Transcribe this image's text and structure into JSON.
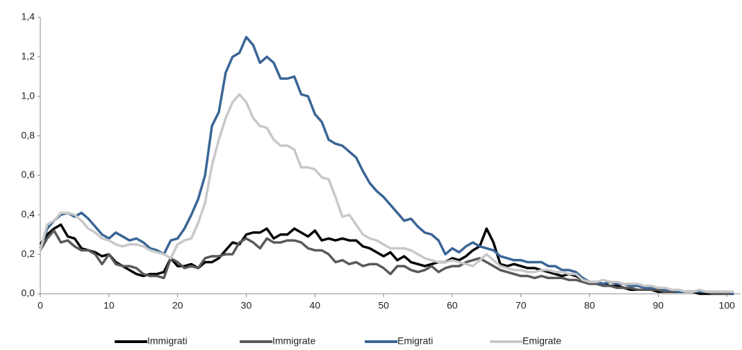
{
  "chart_data": {
    "type": "line",
    "x": [
      0,
      1,
      2,
      3,
      4,
      5,
      6,
      7,
      8,
      9,
      10,
      11,
      12,
      13,
      14,
      15,
      16,
      17,
      18,
      19,
      20,
      21,
      22,
      23,
      24,
      25,
      26,
      27,
      28,
      29,
      30,
      31,
      32,
      33,
      34,
      35,
      36,
      37,
      38,
      39,
      40,
      41,
      42,
      43,
      44,
      45,
      46,
      47,
      48,
      49,
      50,
      51,
      52,
      53,
      54,
      55,
      56,
      57,
      58,
      59,
      60,
      61,
      62,
      63,
      64,
      65,
      66,
      67,
      68,
      69,
      70,
      71,
      72,
      73,
      74,
      75,
      76,
      77,
      78,
      79,
      80,
      81,
      82,
      83,
      84,
      85,
      86,
      87,
      88,
      89,
      90,
      91,
      92,
      93,
      94,
      95,
      96,
      97,
      98,
      99,
      100,
      101
    ],
    "series": [
      {
        "name": "Immigrati",
        "color": "#000000",
        "values": [
          0.25,
          0.3,
          0.33,
          0.35,
          0.29,
          0.28,
          0.23,
          0.22,
          0.21,
          0.19,
          0.2,
          0.16,
          0.14,
          0.12,
          0.1,
          0.09,
          0.1,
          0.1,
          0.11,
          0.18,
          0.14,
          0.14,
          0.15,
          0.13,
          0.16,
          0.16,
          0.18,
          0.22,
          0.26,
          0.25,
          0.3,
          0.31,
          0.31,
          0.33,
          0.28,
          0.3,
          0.3,
          0.33,
          0.31,
          0.29,
          0.32,
          0.27,
          0.28,
          0.27,
          0.28,
          0.27,
          0.27,
          0.24,
          0.23,
          0.21,
          0.19,
          0.21,
          0.17,
          0.19,
          0.16,
          0.15,
          0.14,
          0.15,
          0.16,
          0.16,
          0.18,
          0.17,
          0.19,
          0.22,
          0.24,
          0.33,
          0.26,
          0.15,
          0.14,
          0.15,
          0.14,
          0.13,
          0.13,
          0.12,
          0.11,
          0.1,
          0.09,
          0.1,
          0.09,
          0.07,
          0.06,
          0.05,
          0.05,
          0.04,
          0.04,
          0.03,
          0.02,
          0.02,
          0.02,
          0.02,
          0.01,
          0.01,
          0.01,
          0.01,
          0.01,
          0.01,
          0.0,
          0.0,
          0.0,
          0.0,
          0.0,
          0.0
        ]
      },
      {
        "name": "Immigrate",
        "color": "#595959",
        "values": [
          0.22,
          0.28,
          0.32,
          0.26,
          0.27,
          0.24,
          0.22,
          0.22,
          0.2,
          0.15,
          0.2,
          0.15,
          0.14,
          0.14,
          0.13,
          0.1,
          0.09,
          0.09,
          0.08,
          0.18,
          0.16,
          0.13,
          0.14,
          0.13,
          0.18,
          0.19,
          0.19,
          0.2,
          0.2,
          0.26,
          0.28,
          0.26,
          0.23,
          0.28,
          0.26,
          0.26,
          0.27,
          0.27,
          0.26,
          0.23,
          0.22,
          0.22,
          0.2,
          0.16,
          0.17,
          0.15,
          0.16,
          0.14,
          0.15,
          0.15,
          0.13,
          0.1,
          0.14,
          0.14,
          0.12,
          0.11,
          0.12,
          0.14,
          0.11,
          0.13,
          0.14,
          0.14,
          0.16,
          0.17,
          0.18,
          0.16,
          0.14,
          0.12,
          0.11,
          0.1,
          0.09,
          0.09,
          0.08,
          0.09,
          0.08,
          0.08,
          0.08,
          0.07,
          0.07,
          0.06,
          0.05,
          0.05,
          0.04,
          0.04,
          0.03,
          0.03,
          0.03,
          0.02,
          0.02,
          0.02,
          0.02,
          0.01,
          0.01,
          0.01,
          0.01,
          0.01,
          0.01,
          0.01,
          0.0,
          0.0,
          0.0,
          0.0
        ]
      },
      {
        "name": "Emigrati",
        "color": "#3a6596",
        "values": [
          0.23,
          0.33,
          0.37,
          0.4,
          0.41,
          0.39,
          0.41,
          0.38,
          0.34,
          0.3,
          0.28,
          0.31,
          0.29,
          0.27,
          0.28,
          0.26,
          0.23,
          0.22,
          0.2,
          0.27,
          0.28,
          0.33,
          0.4,
          0.48,
          0.6,
          0.85,
          0.92,
          1.12,
          1.2,
          1.22,
          1.3,
          1.26,
          1.17,
          1.2,
          1.17,
          1.09,
          1.09,
          1.1,
          1.01,
          1.0,
          0.91,
          0.87,
          0.78,
          0.76,
          0.75,
          0.72,
          0.69,
          0.62,
          0.56,
          0.52,
          0.49,
          0.45,
          0.41,
          0.37,
          0.38,
          0.34,
          0.31,
          0.3,
          0.27,
          0.2,
          0.23,
          0.21,
          0.24,
          0.26,
          0.24,
          0.23,
          0.22,
          0.19,
          0.18,
          0.17,
          0.17,
          0.16,
          0.16,
          0.16,
          0.14,
          0.14,
          0.12,
          0.12,
          0.11,
          0.08,
          0.06,
          0.06,
          0.05,
          0.06,
          0.05,
          0.05,
          0.04,
          0.04,
          0.03,
          0.03,
          0.03,
          0.02,
          0.02,
          0.01,
          0.01,
          0.01,
          0.01,
          0.01,
          0.01,
          0.01,
          0.01,
          0.0
        ]
      },
      {
        "name": "Emigrate",
        "color": "#c8c8c8",
        "values": [
          0.22,
          0.35,
          0.37,
          0.41,
          0.41,
          0.4,
          0.37,
          0.33,
          0.31,
          0.28,
          0.27,
          0.25,
          0.24,
          0.25,
          0.25,
          0.24,
          0.22,
          0.21,
          0.2,
          0.18,
          0.25,
          0.27,
          0.28,
          0.36,
          0.46,
          0.65,
          0.78,
          0.89,
          0.97,
          1.01,
          0.97,
          0.89,
          0.85,
          0.84,
          0.78,
          0.75,
          0.75,
          0.73,
          0.64,
          0.64,
          0.63,
          0.59,
          0.58,
          0.49,
          0.39,
          0.4,
          0.35,
          0.3,
          0.28,
          0.27,
          0.25,
          0.23,
          0.23,
          0.23,
          0.22,
          0.2,
          0.18,
          0.17,
          0.16,
          0.16,
          0.17,
          0.16,
          0.15,
          0.14,
          0.17,
          0.2,
          0.17,
          0.14,
          0.13,
          0.12,
          0.12,
          0.11,
          0.11,
          0.12,
          0.12,
          0.11,
          0.11,
          0.1,
          0.1,
          0.07,
          0.06,
          0.06,
          0.07,
          0.06,
          0.06,
          0.05,
          0.05,
          0.05,
          0.04,
          0.04,
          0.03,
          0.03,
          0.02,
          0.02,
          0.01,
          0.01,
          0.02,
          0.01,
          0.01,
          0.01,
          0.01,
          0.01
        ]
      }
    ],
    "xlim": [
      0,
      102
    ],
    "xticks": [
      0,
      10,
      20,
      30,
      40,
      50,
      60,
      70,
      80,
      90,
      100
    ],
    "ylim": [
      0,
      1.4
    ],
    "yticks": [
      {
        "value": 0,
        "label": "0,0"
      },
      {
        "value": 0.2,
        "label": "0,2"
      },
      {
        "value": 0.4,
        "label": "0,4"
      },
      {
        "value": 0.6,
        "label": "0,6"
      },
      {
        "value": 0.8,
        "label": "0,8"
      },
      {
        "value": 1.0,
        "label": "1,0"
      },
      {
        "value": 1.2,
        "label": "1,2"
      },
      {
        "value": 1.4,
        "label": "1,4"
      }
    ],
    "grid": false,
    "legend": "bottom"
  }
}
